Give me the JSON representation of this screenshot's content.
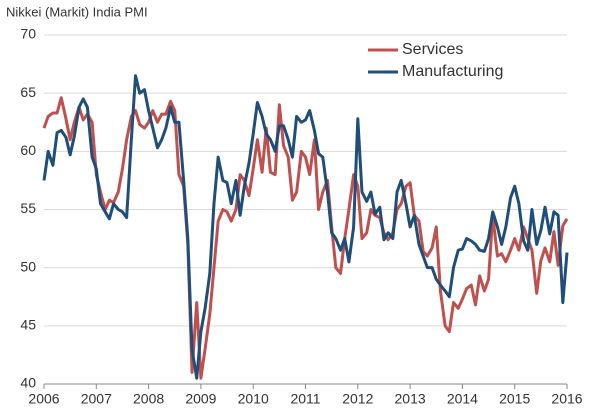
{
  "chart_data": {
    "type": "line",
    "title": "Nikkei (Markit)   India PMI",
    "x": [
      2006,
      2006.08,
      2006.17,
      2006.25,
      2006.33,
      2006.42,
      2006.5,
      2006.58,
      2006.67,
      2006.75,
      2006.83,
      2006.92,
      2007,
      2007.08,
      2007.17,
      2007.25,
      2007.33,
      2007.42,
      2007.5,
      2007.58,
      2007.67,
      2007.75,
      2007.83,
      2007.92,
      2008,
      2008.08,
      2008.17,
      2008.25,
      2008.33,
      2008.42,
      2008.5,
      2008.58,
      2008.67,
      2008.75,
      2008.83,
      2008.92,
      2009,
      2009.08,
      2009.17,
      2009.25,
      2009.33,
      2009.42,
      2009.5,
      2009.58,
      2009.67,
      2009.75,
      2009.83,
      2009.92,
      2010,
      2010.08,
      2010.17,
      2010.25,
      2010.33,
      2010.42,
      2010.5,
      2010.58,
      2010.67,
      2010.75,
      2010.83,
      2010.92,
      2011,
      2011.08,
      2011.17,
      2011.25,
      2011.33,
      2011.42,
      2011.5,
      2011.58,
      2011.67,
      2011.75,
      2011.83,
      2011.92,
      2012,
      2012.08,
      2012.17,
      2012.25,
      2012.33,
      2012.42,
      2012.5,
      2012.58,
      2012.67,
      2012.75,
      2012.83,
      2012.92,
      2013,
      2013.08,
      2013.17,
      2013.25,
      2013.33,
      2013.42,
      2013.5,
      2013.58,
      2013.67,
      2013.75,
      2013.83,
      2013.92,
      2014,
      2014.08,
      2014.17,
      2014.25,
      2014.33,
      2014.42,
      2014.5,
      2014.58,
      2014.67,
      2014.75,
      2014.83,
      2014.92,
      2015,
      2015.08,
      2015.17,
      2015.25,
      2015.33,
      2015.42,
      2015.5,
      2015.58,
      2015.67,
      2015.75,
      2015.83,
      2015.92,
      2016
    ],
    "series": [
      {
        "name": "Services",
        "color": "#c0504d",
        "values": [
          62,
          63,
          63.3,
          63.3,
          64.6,
          62.8,
          61,
          62.5,
          63.8,
          62.7,
          63.2,
          62.5,
          58,
          56.5,
          55,
          55.8,
          55.6,
          56.5,
          58.5,
          61,
          63,
          63.5,
          62.3,
          62,
          62.5,
          63.5,
          62.5,
          63.2,
          63.2,
          64.3,
          63.5,
          58,
          57,
          52,
          41,
          47,
          40.5,
          43,
          46,
          50,
          54,
          55,
          54.8,
          54,
          55,
          58,
          57.5,
          56.2,
          58.5,
          61,
          58.2,
          62,
          58.2,
          58,
          64,
          60.5,
          59.5,
          55.8,
          56.5,
          60,
          59.5,
          58,
          61,
          55,
          56.5,
          57.5,
          53.5,
          50,
          49.5,
          52.5,
          55,
          58,
          57,
          52.5,
          53,
          55,
          54.5,
          54.3,
          53,
          52.4,
          53,
          55,
          55.5,
          57,
          57.3,
          54.5,
          54,
          51.4,
          51,
          51.7,
          53.5,
          48,
          45,
          44.5,
          47,
          46.5,
          47.3,
          48.2,
          48.5,
          46.8,
          49.3,
          48,
          49,
          54.5,
          51,
          51.2,
          50.5,
          51.5,
          52.5,
          51.5,
          53.5,
          52.5,
          51.5,
          47.8,
          50.6,
          51.7,
          50.5,
          53.1,
          50.2,
          53.6,
          54.2
        ]
      },
      {
        "name": "Manufacturing",
        "color": "#1f4e79",
        "values": [
          57.5,
          60,
          58.8,
          61.6,
          61.8,
          61.2,
          59.7,
          61.3,
          63.8,
          64.5,
          63.8,
          59.5,
          58.5,
          55.5,
          54.8,
          54.2,
          55.5,
          55,
          54.8,
          54.3,
          61,
          66.5,
          65,
          65.3,
          63.5,
          62,
          60.3,
          61,
          62,
          63.8,
          62.5,
          62.5,
          57.5,
          52.5,
          43,
          40.5,
          44.5,
          46.5,
          49.5,
          55.5,
          59.5,
          57.5,
          57.3,
          55.5,
          57.5,
          54.5,
          57,
          59,
          61.5,
          64.2,
          63,
          61.5,
          61,
          60,
          62.2,
          62.2,
          61,
          59.5,
          63,
          62.5,
          62.7,
          63.5,
          61.8,
          59.8,
          59.5,
          56.5,
          53,
          52.5,
          51.5,
          52.5,
          50.5,
          53.5,
          62.8,
          56.5,
          55.7,
          56.5,
          54.6,
          55.2,
          52.4,
          53,
          52.5,
          56.5,
          57.5,
          55.5,
          53.5,
          54.5,
          52,
          51,
          50,
          50,
          49,
          48.5,
          48,
          47.5,
          50,
          51.5,
          51.6,
          52.5,
          52.3,
          52,
          51.5,
          51.4,
          52.5,
          54.8,
          53.5,
          52,
          53.5,
          56,
          57,
          55.5,
          52.3,
          51.5,
          55,
          52,
          53.2,
          55.2,
          52.9,
          54.8,
          54.5,
          47,
          51.3
        ]
      }
    ],
    "xlim": [
      2006,
      2016
    ],
    "xticks": [
      2006,
      2007,
      2008,
      2009,
      2010,
      2011,
      2012,
      2013,
      2014,
      2015,
      2016
    ],
    "ylim": [
      40,
      70
    ],
    "yticks": [
      40,
      45,
      50,
      55,
      60,
      65,
      70
    ],
    "grid": true,
    "legend": "top-right"
  }
}
